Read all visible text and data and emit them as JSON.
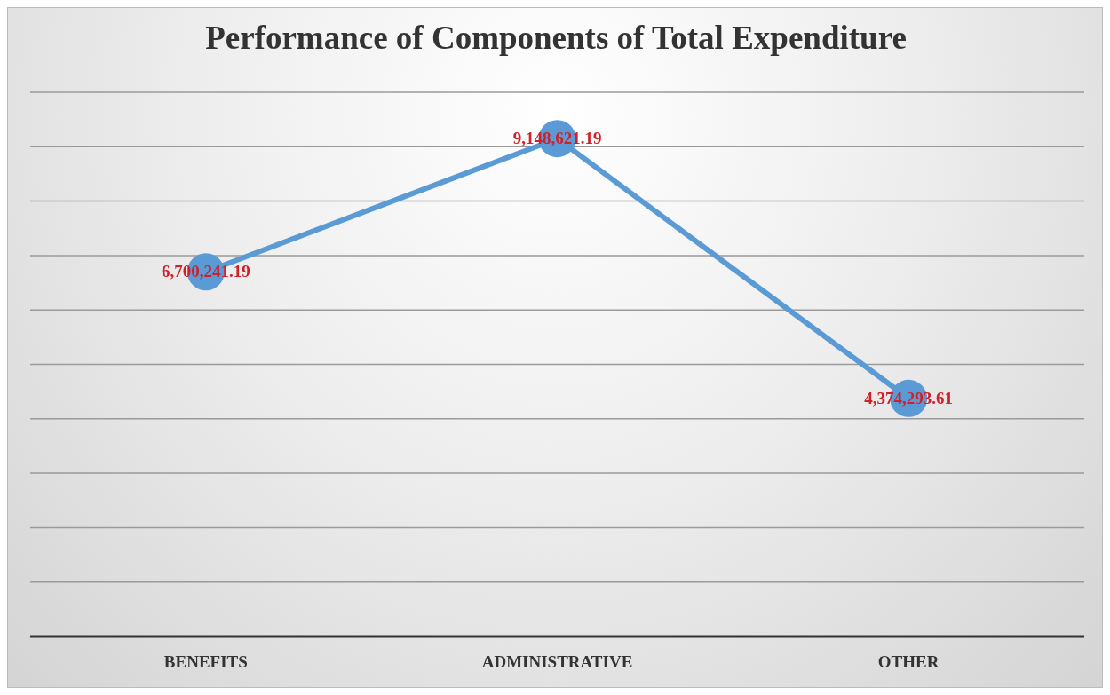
{
  "chart_data": {
    "type": "line",
    "title": "Performance of Components of Total Expenditure",
    "categories": [
      "BENEFITS",
      "ADMINISTRATIVE",
      "OTHER"
    ],
    "series": [
      {
        "color": "#5b9bd5",
        "values": [
          6700241.19,
          9148621.19,
          4374293.61
        ],
        "value_labels": [
          "6,700,241.19",
          "9,148,621.19",
          "4,374,293.61"
        ]
      }
    ],
    "ylim": [
      0,
      10000000
    ],
    "yticks": [
      {
        "value": 0,
        "label": null
      },
      {
        "value": 1000000,
        "label": null
      },
      {
        "value": 2000000,
        "label": null
      },
      {
        "value": 3000000,
        "label": null
      },
      {
        "value": 4000000,
        "label": null
      },
      {
        "value": 5000000,
        "label": null
      },
      {
        "value": 6000000,
        "label": null
      },
      {
        "value": 7000000,
        "label": null
      },
      {
        "value": 8000000,
        "label": null
      },
      {
        "value": 9000000,
        "label": null
      },
      {
        "value": 10000000,
        "label": null
      }
    ],
    "tick_labels": "x",
    "grid": "y",
    "marker": "circle",
    "line_style": "solid",
    "legend": false
  }
}
